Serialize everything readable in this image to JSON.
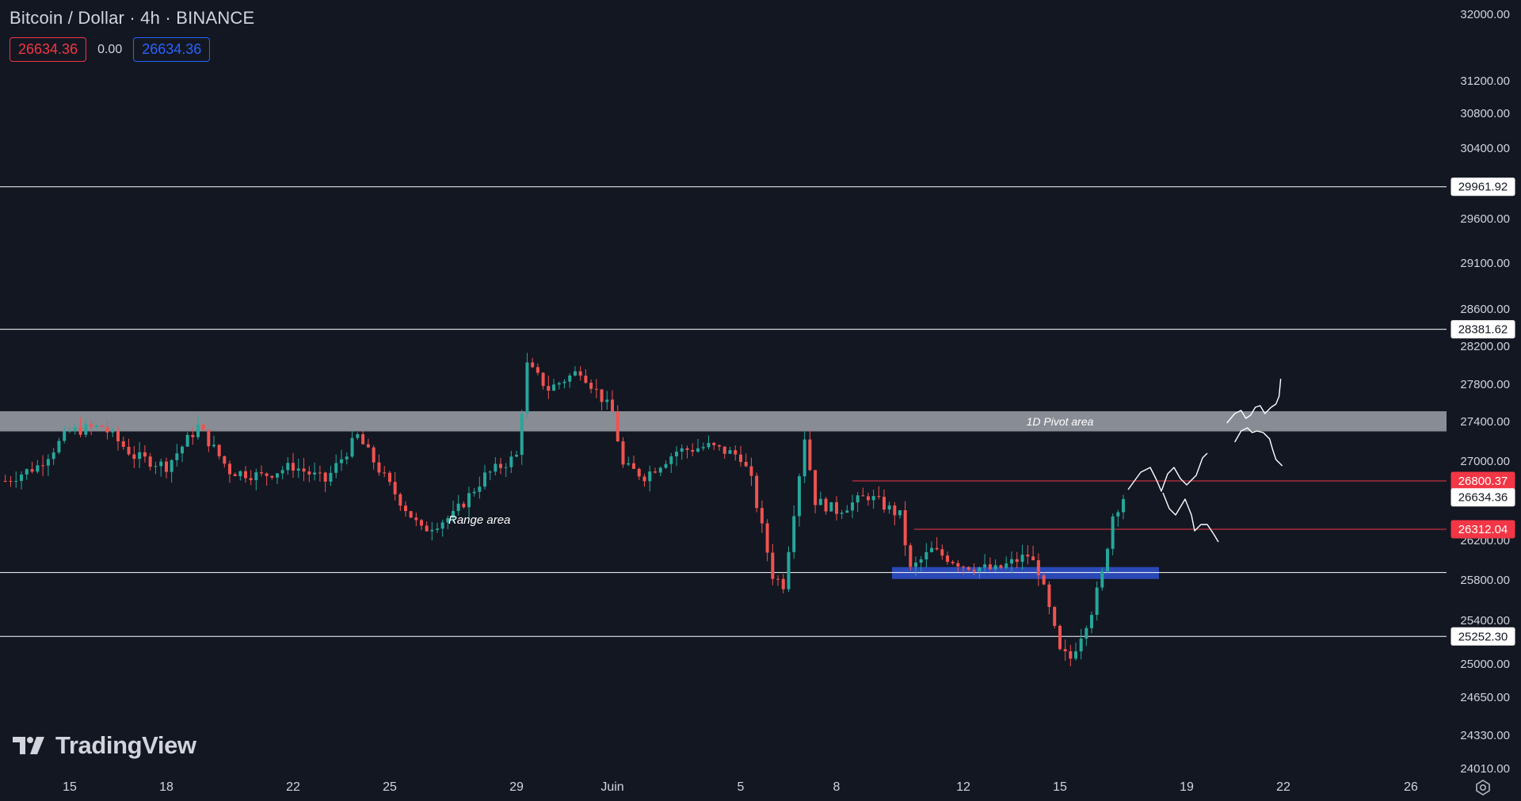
{
  "header": {
    "symbol_title": "Bitcoin / Dollar · 4h · BINANCE",
    "sell_price": "26634.36",
    "spread": "0.00",
    "buy_price": "26634.36"
  },
  "logo": {
    "text": "TradingView"
  },
  "colors": {
    "background": "#131722",
    "up": "#26a69a",
    "down": "#ef5350",
    "pivot_zone": "#9ea1a8",
    "blue_zone": "#2d4fc7",
    "axis_text": "#d1d4dc",
    "red_label": "#f23645"
  },
  "chart_data": {
    "type": "candlestick",
    "timeframe": "4h",
    "y_axis": {
      "ticks": [
        "32000.00",
        "31200.00",
        "30800.00",
        "30400.00",
        "29600.00",
        "29100.00",
        "28600.00",
        "28200.00",
        "27800.00",
        "27400.00",
        "27000.00",
        "26200.00",
        "25800.00",
        "25400.00",
        "25000.00",
        "24650.00",
        "24330.00",
        "24010.00"
      ],
      "range": [
        24010,
        32000
      ]
    },
    "x_axis": {
      "labels": [
        "15",
        "18",
        "22",
        "25",
        "29",
        "Juin",
        "5",
        "8",
        "12",
        "15",
        "19",
        "22",
        "26"
      ]
    },
    "horizontal_lines": [
      {
        "price": 29961.92,
        "label": "29961.92",
        "color": "#ffffff"
      },
      {
        "price": 28381.62,
        "label": "28381.62",
        "color": "#ffffff"
      },
      {
        "price": 25875,
        "label": "",
        "color": "#ffffff"
      },
      {
        "price": 25252.3,
        "label": "25252.30",
        "color": "#ffffff"
      }
    ],
    "price_labels": [
      {
        "price": 26800.37,
        "label": "26800.37",
        "style": "red"
      },
      {
        "price": 26634.36,
        "label": "26634.36",
        "style": "current"
      },
      {
        "price": 26312.04,
        "label": "26312.04",
        "style": "red"
      }
    ],
    "zones": [
      {
        "name": "1D Pivot area",
        "top": 27510,
        "bottom": 27300,
        "color": "#9ea1a8",
        "label": "1D Pivot area"
      },
      {
        "name": "blue support zone",
        "top": 25930,
        "bottom": 25810,
        "color": "#2d4fc7",
        "label": ""
      }
    ],
    "annotations": [
      {
        "text": "Range area",
        "date": "May 27",
        "price": 26370
      }
    ],
    "candles_close_path": [
      {
        "date": "May 13",
        "price": 26800
      },
      {
        "date": "May 14",
        "price": 26950
      },
      {
        "date": "May 15",
        "price": 27300
      },
      {
        "date": "May 16",
        "price": 27350
      },
      {
        "date": "May 17",
        "price": 27050
      },
      {
        "date": "May 18",
        "price": 26950
      },
      {
        "date": "May 19",
        "price": 27350
      },
      {
        "date": "May 20",
        "price": 26900
      },
      {
        "date": "May 21",
        "price": 26850
      },
      {
        "date": "May 22",
        "price": 26950
      },
      {
        "date": "May 23",
        "price": 26800
      },
      {
        "date": "May 24",
        "price": 27250
      },
      {
        "date": "May 25",
        "price": 26750
      },
      {
        "date": "May 26",
        "price": 26300
      },
      {
        "date": "May 27",
        "price": 26450
      },
      {
        "date": "May 28",
        "price": 26850
      },
      {
        "date": "May 29",
        "price": 27050
      },
      {
        "date": "May 29",
        "price": 28000
      },
      {
        "date": "May 30",
        "price": 27750
      },
      {
        "date": "May 31",
        "price": 27950
      },
      {
        "date": "Jun 1",
        "price": 27500
      },
      {
        "date": "Jun 1",
        "price": 26950
      },
      {
        "date": "Jun 2",
        "price": 26850
      },
      {
        "date": "Jun 3",
        "price": 27100
      },
      {
        "date": "Jun 4",
        "price": 27150
      },
      {
        "date": "Jun 5",
        "price": 27050
      },
      {
        "date": "Jun 5",
        "price": 26800
      },
      {
        "date": "Jun 6",
        "price": 25850
      },
      {
        "date": "Jun 6",
        "price": 25750
      },
      {
        "date": "Jun 7",
        "price": 27250
      },
      {
        "date": "Jun 7",
        "price": 26600
      },
      {
        "date": "Jun 8",
        "price": 26500
      },
      {
        "date": "Jun 9",
        "price": 26650
      },
      {
        "date": "Jun 10",
        "price": 26450
      },
      {
        "date": "Jun 10",
        "price": 25900
      },
      {
        "date": "Jun 11",
        "price": 26100
      },
      {
        "date": "Jun 12",
        "price": 25950
      },
      {
        "date": "Jun 13",
        "price": 25900
      },
      {
        "date": "Jun 14",
        "price": 26050
      },
      {
        "date": "Jun 14",
        "price": 25900
      },
      {
        "date": "Jun 15",
        "price": 25100
      },
      {
        "date": "Jun 15",
        "price": 25050
      },
      {
        "date": "Jun 16",
        "price": 25500
      },
      {
        "date": "Jun 16",
        "price": 25850
      },
      {
        "date": "Jun 16",
        "price": 26450
      },
      {
        "date": "Jun 17",
        "price": 26634
      }
    ],
    "projection_paths": [
      {
        "date": "Jun 17",
        "price": 26700,
        "to_date": "Jun 20",
        "to_price": 27100
      },
      {
        "date": "Jun 17",
        "price": 26700,
        "to_date": "Jun 20",
        "to_price": 26200
      },
      {
        "date": "Jun 21",
        "price": 27400,
        "to_date": "Jun 22",
        "to_price": 27850
      },
      {
        "date": "Jun 21",
        "price": 27200,
        "to_date": "Jun 22",
        "to_price": 26950
      }
    ]
  }
}
